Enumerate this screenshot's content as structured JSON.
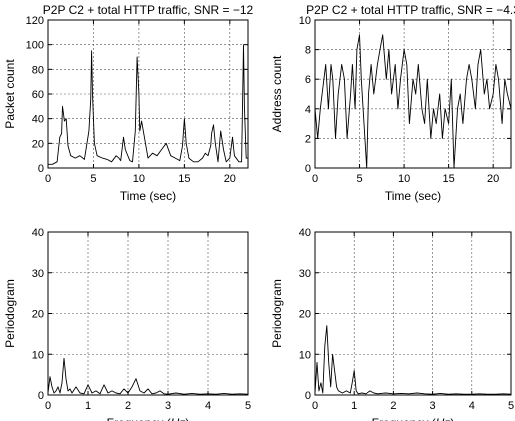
{
  "chart_data": [
    {
      "id": "p1",
      "type": "line",
      "title": "P2P C2 +  total HTTP traffic, SNR = −12",
      "xlabel": "Time (sec)",
      "ylabel": "Packet count",
      "xlim": [
        0,
        22
      ],
      "ylim": [
        0,
        120
      ],
      "xticks": [
        0,
        5,
        10,
        15,
        20
      ],
      "yticks": [
        0,
        20,
        40,
        60,
        80,
        100,
        120
      ],
      "grid": true,
      "series": [
        {
          "color": "#000000",
          "x": [
            0,
            0.5,
            1,
            1.3,
            1.5,
            1.6,
            1.8,
            2,
            2.2,
            2.5,
            3,
            3.5,
            4,
            4.5,
            4.7,
            4.8,
            4.9,
            5.1,
            5.4,
            6,
            6.5,
            7,
            7.5,
            7.8,
            8,
            8.3,
            8.5,
            9,
            9.3,
            9.6,
            9.8,
            10,
            10.1,
            10.3,
            10.6,
            11,
            11.5,
            12,
            12.5,
            13,
            13.5,
            14,
            14.5,
            14.8,
            14.9,
            15,
            15.2,
            15.5,
            16,
            16.5,
            17,
            17.3,
            17.6,
            17.9,
            18,
            18.2,
            18.4,
            18.7,
            19,
            19.3,
            19.6,
            20,
            20.3,
            20.5,
            21,
            21.3,
            21.5,
            21.6,
            21.8,
            22
          ],
          "y": [
            3,
            3,
            5,
            25,
            28,
            50,
            38,
            40,
            18,
            10,
            8,
            10,
            7,
            30,
            55,
            95,
            60,
            20,
            10,
            8,
            7,
            5,
            10,
            8,
            6,
            25,
            15,
            6,
            5,
            30,
            90,
            60,
            30,
            38,
            25,
            8,
            12,
            10,
            15,
            20,
            10,
            8,
            6,
            18,
            30,
            40,
            20,
            8,
            5,
            5,
            8,
            12,
            10,
            18,
            28,
            35,
            20,
            5,
            30,
            15,
            5,
            8,
            25,
            10,
            5,
            5,
            100,
            50,
            8,
            8
          ]
        }
      ]
    },
    {
      "id": "p2",
      "type": "line",
      "title": "P2P C2 + total HTTP traffic, SNR = −4.3",
      "xlabel": "Time (sec)",
      "ylabel": "Address count",
      "xlim": [
        0,
        22
      ],
      "ylim": [
        0,
        10
      ],
      "xticks": [
        0,
        5,
        10,
        15,
        20
      ],
      "yticks": [
        0,
        2,
        4,
        6,
        8,
        10
      ],
      "grid": true,
      "series": [
        {
          "color": "#000000",
          "x": [
            0,
            0.3,
            0.6,
            1,
            1.2,
            1.5,
            1.8,
            2,
            2.3,
            2.6,
            3,
            3.3,
            3.6,
            4,
            4.2,
            4.5,
            4.7,
            5,
            5.2,
            5.5,
            5.8,
            6,
            6.3,
            6.6,
            7,
            7.3,
            7.6,
            8,
            8.3,
            8.6,
            9,
            9.3,
            9.6,
            10,
            10.3,
            10.6,
            11,
            11.3,
            11.6,
            12,
            12.3,
            12.6,
            13,
            13.3,
            13.6,
            14,
            14.3,
            14.6,
            15,
            15.3,
            15.6,
            16,
            16.3,
            16.6,
            17,
            17.3,
            17.6,
            18,
            18.3,
            18.6,
            19,
            19.3,
            19.6,
            20,
            20.3,
            20.6,
            21,
            21.3,
            21.6,
            22
          ],
          "y": [
            4,
            2,
            4,
            6,
            7,
            4,
            7,
            6,
            2,
            5,
            7,
            6,
            2,
            5,
            7,
            4,
            8,
            9,
            6,
            3,
            0,
            5,
            7,
            5,
            7,
            8,
            9,
            6,
            8,
            5,
            7,
            4,
            6,
            8,
            7,
            3,
            6,
            5,
            7,
            4,
            3,
            6,
            2,
            4,
            3,
            5,
            2,
            4,
            3,
            6,
            0,
            4,
            5,
            3,
            6,
            7,
            6,
            4,
            7,
            8,
            5,
            6,
            4,
            5,
            7,
            6,
            3,
            6,
            5,
            4
          ]
        }
      ]
    },
    {
      "id": "p3",
      "type": "line",
      "title": "",
      "xlabel": "Frequency (Hz)",
      "xlabel_prefix": "Frequency (",
      "xlabel_italic": "Hz",
      "xlabel_suffix": ")",
      "ylabel": "Periodogram",
      "xlim": [
        0,
        5
      ],
      "ylim": [
        0,
        40
      ],
      "xticks": [
        0,
        1,
        2,
        3,
        4,
        5
      ],
      "yticks": [
        0,
        10,
        20,
        30,
        40
      ],
      "grid": true,
      "series": [
        {
          "color": "#000000",
          "x": [
            0,
            0.05,
            0.1,
            0.15,
            0.2,
            0.25,
            0.3,
            0.35,
            0.4,
            0.45,
            0.5,
            0.55,
            0.6,
            0.7,
            0.8,
            0.9,
            1,
            1.1,
            1.2,
            1.3,
            1.4,
            1.5,
            1.6,
            1.7,
            1.8,
            1.9,
            2,
            2.1,
            2.2,
            2.3,
            2.4,
            2.5,
            2.6,
            2.7,
            2.8,
            2.9,
            3,
            3.2,
            3.4,
            3.6,
            3.8,
            4,
            4.2,
            4.4,
            4.6,
            4.8,
            5
          ],
          "y": [
            0.5,
            4.5,
            2,
            0.5,
            1,
            2,
            0.5,
            3,
            9,
            4,
            1,
            1.5,
            0.5,
            2,
            0.5,
            0.3,
            2.5,
            0.5,
            1,
            0.3,
            2.5,
            0.5,
            1,
            0.5,
            0.3,
            1.5,
            0.5,
            2,
            4,
            1,
            0.5,
            1.5,
            0.3,
            0.5,
            1,
            0.3,
            0.2,
            0.5,
            0.2,
            0.4,
            0.2,
            0.3,
            0.2,
            0.4,
            0.2,
            0.3,
            0.2
          ]
        }
      ]
    },
    {
      "id": "p4",
      "type": "line",
      "title": "",
      "xlabel": "Frequency (Hz)",
      "xlabel_prefix": "Frequency (",
      "xlabel_italic": "Hz",
      "xlabel_suffix": ")",
      "ylabel": "Periodogram",
      "xlim": [
        0,
        5
      ],
      "ylim": [
        0,
        40
      ],
      "xticks": [
        0,
        1,
        2,
        3,
        4,
        5
      ],
      "yticks": [
        0,
        10,
        20,
        30,
        40
      ],
      "grid": true,
      "series": [
        {
          "color": "#000000",
          "x": [
            0,
            0.05,
            0.1,
            0.15,
            0.2,
            0.25,
            0.3,
            0.35,
            0.4,
            0.45,
            0.5,
            0.55,
            0.6,
            0.7,
            0.8,
            0.9,
            0.95,
            1,
            1.05,
            1.1,
            1.2,
            1.3,
            1.4,
            1.5,
            1.6,
            1.8,
            2,
            2.2,
            2.4,
            2.6,
            2.8,
            3,
            3.2,
            3.4,
            3.6,
            3.8,
            4,
            4.2,
            4.4,
            4.6,
            4.8,
            5
          ],
          "y": [
            0.5,
            8,
            1,
            3,
            0.5,
            12,
            17,
            8,
            2,
            10,
            6,
            2,
            1,
            0.5,
            1,
            0.5,
            3,
            6,
            1,
            0.3,
            0.5,
            0.3,
            1,
            0.5,
            0.3,
            0.5,
            0.3,
            0.4,
            0.3,
            0.5,
            0.3,
            0.2,
            0.4,
            0.2,
            0.3,
            0.2,
            0.2,
            0.3,
            0.2,
            0.2,
            0.3,
            0.2
          ]
        }
      ]
    }
  ]
}
